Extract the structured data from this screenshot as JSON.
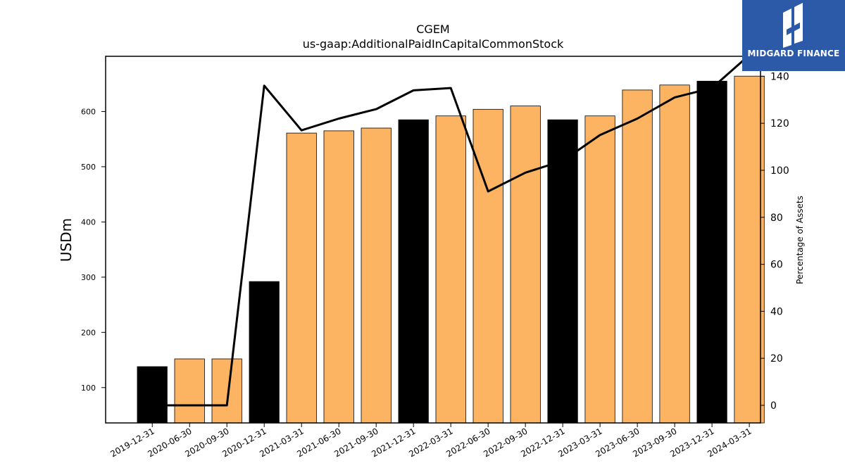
{
  "brand": {
    "name": "MIDGARD FINANCE",
    "bg_color": "#2d5aa8",
    "icon": "midgard-logo-icon"
  },
  "chart_data": {
    "type": "bar",
    "title": "CGEM",
    "subtitle": "us-gaap:AdditionalPaidInCapitalCommonStock",
    "ylabel": "USDm",
    "y2label": "Percentage of Assets",
    "categories": [
      "2019-12-31",
      "2020-06-30",
      "2020-09-30",
      "2020-12-31",
      "2021-03-31",
      "2021-06-30",
      "2021-09-30",
      "2021-12-31",
      "2022-03-31",
      "2022-06-30",
      "2022-09-30",
      "2022-12-31",
      "2023-03-31",
      "2023-06-30",
      "2023-09-30",
      "2023-12-31",
      "2024-03-31"
    ],
    "series": [
      {
        "type": "bar",
        "axis": "left",
        "values": [
          138,
          152,
          152,
          292,
          561,
          565,
          570,
          585,
          592,
          604,
          610,
          585,
          592,
          639,
          648,
          655,
          664
        ],
        "colors": [
          "#000000",
          "#fdb462",
          "#fdb462",
          "#000000",
          "#fdb462",
          "#fdb462",
          "#fdb462",
          "#000000",
          "#fdb462",
          "#fdb462",
          "#fdb462",
          "#000000",
          "#fdb462",
          "#fdb462",
          "#fdb462",
          "#000000",
          "#fdb462"
        ]
      },
      {
        "type": "line",
        "axis": "right",
        "color": "#000000",
        "values": [
          0,
          0,
          0,
          136,
          117,
          122,
          126,
          134,
          135,
          91,
          99,
          104,
          115,
          122,
          131,
          135,
          149
        ]
      }
    ],
    "ylim": [
      36,
      700
    ],
    "y2lim": [
      -7.5,
      148.5
    ],
    "yticks": [
      100,
      200,
      300,
      400,
      500,
      600
    ],
    "y2ticks": [
      0,
      20,
      40,
      60,
      80,
      100,
      120,
      140
    ],
    "grid": false,
    "legend": "none"
  }
}
